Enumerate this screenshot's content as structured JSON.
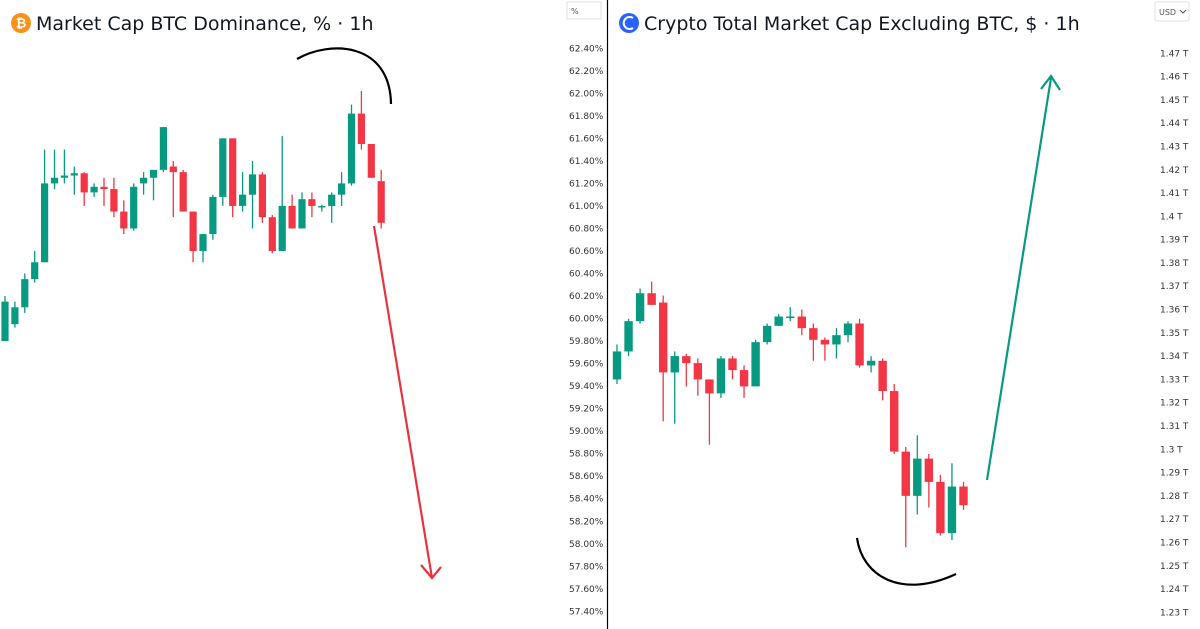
{
  "colors": {
    "up": "#089981",
    "down": "#f23645",
    "axis_line": "#000000",
    "btc_orange": "#f7931a",
    "total_blue": "#2962ff"
  },
  "chart_data": [
    {
      "type": "candlestick",
      "title": "Market Cap BTC Dominance, % · 1h",
      "icon": "bitcoin-icon",
      "unit_label": "%",
      "ylim": [
        57.35,
        62.5
      ],
      "y_ticks": [
        "62.40%",
        "62.20%",
        "62.00%",
        "61.80%",
        "61.60%",
        "61.40%",
        "61.20%",
        "61.00%",
        "60.80%",
        "60.60%",
        "60.40%",
        "60.20%",
        "60.00%",
        "59.80%",
        "59.60%",
        "59.40%",
        "59.20%",
        "59.00%",
        "58.80%",
        "58.60%",
        "58.40%",
        "58.20%",
        "58.00%",
        "57.80%",
        "57.60%",
        "57.40%"
      ],
      "y_tick_values": [
        62.4,
        62.2,
        62.0,
        61.8,
        61.6,
        61.4,
        61.2,
        61.0,
        60.8,
        60.6,
        60.4,
        60.2,
        60.0,
        59.8,
        59.6,
        59.4,
        59.2,
        59.0,
        58.8,
        58.6,
        58.4,
        58.2,
        58.0,
        57.8,
        57.6,
        57.4
      ],
      "candles": [
        {
          "o": 59.8,
          "h": 60.2,
          "l": 59.8,
          "c": 60.15
        },
        {
          "o": 59.95,
          "h": 60.15,
          "l": 59.92,
          "c": 60.1
        },
        {
          "o": 60.1,
          "h": 60.4,
          "l": 60.05,
          "c": 60.35
        },
        {
          "o": 60.35,
          "h": 60.6,
          "l": 60.32,
          "c": 60.5
        },
        {
          "o": 60.5,
          "h": 61.5,
          "l": 60.5,
          "c": 61.2
        },
        {
          "o": 61.2,
          "h": 61.5,
          "l": 61.15,
          "c": 61.25
        },
        {
          "o": 61.25,
          "h": 61.5,
          "l": 61.2,
          "c": 61.27
        },
        {
          "o": 61.27,
          "h": 61.35,
          "l": 61.1,
          "c": 61.29
        },
        {
          "o": 61.29,
          "h": 61.3,
          "l": 61.0,
          "c": 61.12
        },
        {
          "o": 61.12,
          "h": 61.2,
          "l": 61.08,
          "c": 61.17
        },
        {
          "o": 61.17,
          "h": 61.25,
          "l": 61.0,
          "c": 61.15
        },
        {
          "o": 61.15,
          "h": 61.25,
          "l": 60.9,
          "c": 60.95
        },
        {
          "o": 60.95,
          "h": 61.05,
          "l": 60.75,
          "c": 60.8
        },
        {
          "o": 60.8,
          "h": 61.2,
          "l": 60.78,
          "c": 61.17
        },
        {
          "o": 61.2,
          "h": 61.3,
          "l": 61.1,
          "c": 61.25
        },
        {
          "o": 61.25,
          "h": 61.32,
          "l": 61.05,
          "c": 61.32
        },
        {
          "o": 61.32,
          "h": 61.7,
          "l": 61.3,
          "c": 61.7
        },
        {
          "o": 61.35,
          "h": 61.4,
          "l": 60.9,
          "c": 61.3
        },
        {
          "o": 61.3,
          "h": 61.32,
          "l": 60.95,
          "c": 60.95
        },
        {
          "o": 60.95,
          "h": 60.95,
          "l": 60.5,
          "c": 60.6
        },
        {
          "o": 60.6,
          "h": 60.75,
          "l": 60.5,
          "c": 60.75
        },
        {
          "o": 60.75,
          "h": 61.1,
          "l": 60.7,
          "c": 61.08
        },
        {
          "o": 61.08,
          "h": 61.6,
          "l": 61.0,
          "c": 61.6
        },
        {
          "o": 61.6,
          "h": 61.6,
          "l": 60.9,
          "c": 61.0
        },
        {
          "o": 61.0,
          "h": 61.3,
          "l": 60.95,
          "c": 61.1
        },
        {
          "o": 61.1,
          "h": 61.4,
          "l": 60.8,
          "c": 61.28
        },
        {
          "o": 61.28,
          "h": 61.3,
          "l": 60.85,
          "c": 60.9
        },
        {
          "o": 60.9,
          "h": 60.92,
          "l": 60.58,
          "c": 60.6
        },
        {
          "o": 60.6,
          "h": 61.62,
          "l": 60.6,
          "c": 61.0
        },
        {
          "o": 61.0,
          "h": 61.1,
          "l": 60.8,
          "c": 60.8
        },
        {
          "o": 60.8,
          "h": 61.12,
          "l": 60.8,
          "c": 61.06
        },
        {
          "o": 61.06,
          "h": 61.12,
          "l": 60.9,
          "c": 61.0
        },
        {
          "o": 61.0,
          "h": 61.01,
          "l": 60.95,
          "c": 61.0
        },
        {
          "o": 61.0,
          "h": 61.12,
          "l": 60.85,
          "c": 61.1
        },
        {
          "o": 61.1,
          "h": 61.3,
          "l": 61.0,
          "c": 61.2
        },
        {
          "o": 61.2,
          "h": 61.9,
          "l": 61.18,
          "c": 61.82
        },
        {
          "o": 61.82,
          "h": 62.02,
          "l": 61.5,
          "c": 61.55
        },
        {
          "o": 61.55,
          "h": 61.55,
          "l": 61.25,
          "c": 61.25
        },
        {
          "o": 61.22,
          "h": 61.32,
          "l": 60.8,
          "c": 60.85
        }
      ]
    },
    {
      "type": "candlestick",
      "title": "Crypto Total Market Cap Excluding BTC, $ · 1h",
      "icon": "total-market-icon",
      "unit_label": "USD",
      "ylim": [
        1.228,
        1.477
      ],
      "y_ticks": [
        "1.47 T",
        "1.46 T",
        "1.45 T",
        "1.44 T",
        "1.43 T",
        "1.42 T",
        "1.41 T",
        "1.4 T",
        "1.39 T",
        "1.38 T",
        "1.37 T",
        "1.36 T",
        "1.35 T",
        "1.34 T",
        "1.33 T",
        "1.32 T",
        "1.31 T",
        "1.3 T",
        "1.29 T",
        "1.28 T",
        "1.27 T",
        "1.26 T",
        "1.25 T",
        "1.24 T",
        "1.23 T"
      ],
      "y_tick_values": [
        1.47,
        1.46,
        1.45,
        1.44,
        1.43,
        1.42,
        1.41,
        1.4,
        1.39,
        1.38,
        1.37,
        1.36,
        1.35,
        1.34,
        1.33,
        1.32,
        1.31,
        1.3,
        1.29,
        1.28,
        1.27,
        1.26,
        1.25,
        1.24,
        1.23
      ],
      "candles": [
        {
          "o": 1.33,
          "h": 1.345,
          "l": 1.328,
          "c": 1.342
        },
        {
          "o": 1.342,
          "h": 1.356,
          "l": 1.34,
          "c": 1.355
        },
        {
          "o": 1.355,
          "h": 1.369,
          "l": 1.354,
          "c": 1.367
        },
        {
          "o": 1.367,
          "h": 1.372,
          "l": 1.362,
          "c": 1.362
        },
        {
          "o": 1.363,
          "h": 1.366,
          "l": 1.312,
          "c": 1.333
        },
        {
          "o": 1.333,
          "h": 1.342,
          "l": 1.311,
          "c": 1.34
        },
        {
          "o": 1.34,
          "h": 1.341,
          "l": 1.327,
          "c": 1.337
        },
        {
          "o": 1.337,
          "h": 1.339,
          "l": 1.323,
          "c": 1.33
        },
        {
          "o": 1.33,
          "h": 1.33,
          "l": 1.302,
          "c": 1.324
        },
        {
          "o": 1.324,
          "h": 1.34,
          "l": 1.322,
          "c": 1.339
        },
        {
          "o": 1.339,
          "h": 1.34,
          "l": 1.33,
          "c": 1.334
        },
        {
          "o": 1.334,
          "h": 1.336,
          "l": 1.322,
          "c": 1.327
        },
        {
          "o": 1.327,
          "h": 1.347,
          "l": 1.327,
          "c": 1.346
        },
        {
          "o": 1.346,
          "h": 1.354,
          "l": 1.345,
          "c": 1.353
        },
        {
          "o": 1.353,
          "h": 1.358,
          "l": 1.353,
          "c": 1.357
        },
        {
          "o": 1.357,
          "h": 1.361,
          "l": 1.355,
          "c": 1.357
        },
        {
          "o": 1.357,
          "h": 1.36,
          "l": 1.349,
          "c": 1.352
        },
        {
          "o": 1.352,
          "h": 1.354,
          "l": 1.338,
          "c": 1.347
        },
        {
          "o": 1.347,
          "h": 1.348,
          "l": 1.338,
          "c": 1.345
        },
        {
          "o": 1.345,
          "h": 1.352,
          "l": 1.339,
          "c": 1.349
        },
        {
          "o": 1.349,
          "h": 1.355,
          "l": 1.346,
          "c": 1.354
        },
        {
          "o": 1.354,
          "h": 1.356,
          "l": 1.335,
          "c": 1.336
        },
        {
          "o": 1.336,
          "h": 1.34,
          "l": 1.333,
          "c": 1.338
        },
        {
          "o": 1.338,
          "h": 1.339,
          "l": 1.321,
          "c": 1.325
        },
        {
          "o": 1.325,
          "h": 1.328,
          "l": 1.298,
          "c": 1.299
        },
        {
          "o": 1.299,
          "h": 1.301,
          "l": 1.258,
          "c": 1.28
        },
        {
          "o": 1.28,
          "h": 1.306,
          "l": 1.272,
          "c": 1.296
        },
        {
          "o": 1.296,
          "h": 1.298,
          "l": 1.275,
          "c": 1.286
        },
        {
          "o": 1.286,
          "h": 1.289,
          "l": 1.263,
          "c": 1.264
        },
        {
          "o": 1.264,
          "h": 1.294,
          "l": 1.261,
          "c": 1.284
        },
        {
          "o": 1.284,
          "h": 1.286,
          "l": 1.274,
          "c": 1.276
        }
      ]
    }
  ]
}
